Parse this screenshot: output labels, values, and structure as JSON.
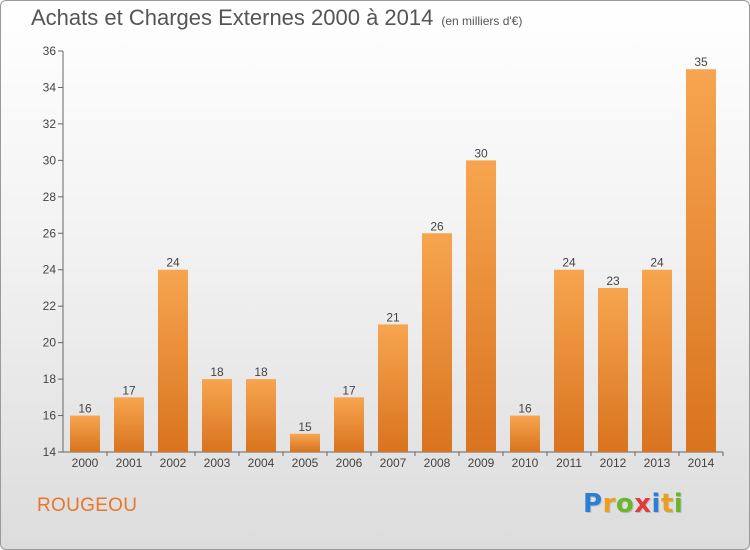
{
  "header": {
    "title": "Achats et Charges Externes 2000 à 2014",
    "unit": "(en milliers d'€)"
  },
  "footer": {
    "commune": "ROUGEOU",
    "logo_letters": [
      "P",
      "r",
      "o",
      "x",
      "i",
      "t",
      "i"
    ],
    "logo_colors": [
      "#2a7fd4",
      "#e8a020",
      "#6bb52d",
      "#e03c3c",
      "#2a7fd4",
      "#e8a020",
      "#6bb52d"
    ]
  },
  "chart_data": {
    "type": "bar",
    "title": "Achats et Charges Externes 2000 à 2014",
    "subtitle": "(en milliers d'€)",
    "categories": [
      "2000",
      "2001",
      "2002",
      "2003",
      "2004",
      "2005",
      "2006",
      "2007",
      "2008",
      "2009",
      "2010",
      "2011",
      "2012",
      "2013",
      "2014"
    ],
    "values": [
      16,
      17,
      24,
      18,
      18,
      15,
      17,
      21,
      26,
      30,
      16,
      24,
      23,
      24,
      35
    ],
    "ylim": [
      14,
      36
    ],
    "yticks": [
      14,
      16,
      18,
      20,
      22,
      24,
      26,
      28,
      30,
      32,
      34,
      36
    ],
    "grid": false,
    "data_labels": true,
    "colors": {
      "bar_top": "#f7a550",
      "bar_bottom": "#d9731f",
      "axis": "#666666"
    }
  }
}
